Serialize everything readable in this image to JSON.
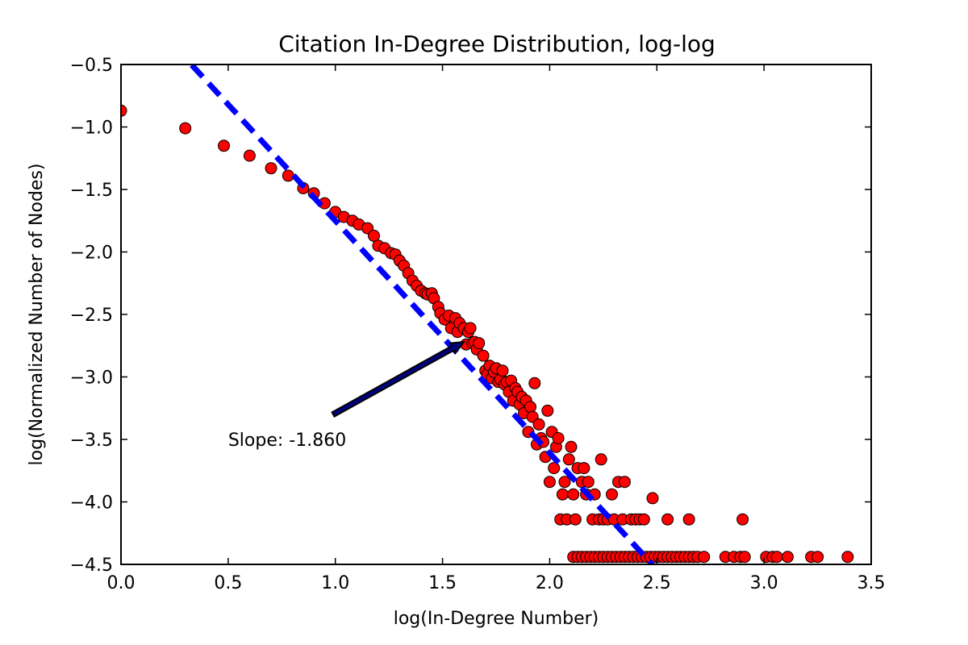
{
  "chart_data": {
    "type": "scatter",
    "title": "Citation In-Degree Distribution, log-log",
    "xlabel": "log(In-Degree Number)",
    "ylabel": "log(Normalized Number of Nodes)",
    "xlim": [
      0.0,
      3.5
    ],
    "ylim": [
      -4.5,
      -0.5
    ],
    "xticks": [
      "0.0",
      "0.5",
      "1.0",
      "1.5",
      "2.0",
      "2.5",
      "3.0",
      "3.5"
    ],
    "yticks": [
      "−0.5",
      "−1.0",
      "−1.5",
      "−2.0",
      "−2.5",
      "−3.0",
      "−3.5",
      "−4.0",
      "−4.5"
    ],
    "grid": false,
    "legend": "none",
    "marker_color": "#ff0000",
    "marker_edge_color": "#000000",
    "fit_line_color": "#0000ff",
    "fit_line": {
      "slope": -1.86,
      "intercept": 0.11,
      "x_range": [
        0.33,
        2.48
      ]
    },
    "annotation": {
      "text": "Slope: -1.860",
      "text_at": [
        0.5,
        -3.5
      ],
      "arrow_from": [
        0.99,
        -3.3
      ],
      "arrow_to": [
        1.6,
        -2.72
      ]
    },
    "series": [
      {
        "points": [
          [
            0.0,
            -0.87
          ],
          [
            0.3,
            -1.01
          ],
          [
            0.48,
            -1.15
          ],
          [
            0.6,
            -1.23
          ],
          [
            0.7,
            -1.33
          ],
          [
            0.78,
            -1.39
          ],
          [
            0.85,
            -1.49
          ],
          [
            0.9,
            -1.53
          ],
          [
            0.95,
            -1.61
          ],
          [
            1.0,
            -1.68
          ],
          [
            1.04,
            -1.72
          ],
          [
            1.08,
            -1.75
          ],
          [
            1.11,
            -1.78
          ],
          [
            1.15,
            -1.81
          ],
          [
            1.18,
            -1.87
          ],
          [
            1.2,
            -1.95
          ],
          [
            1.23,
            -1.97
          ],
          [
            1.26,
            -2.01
          ],
          [
            1.28,
            -2.02
          ],
          [
            1.3,
            -2.07
          ],
          [
            1.32,
            -2.11
          ],
          [
            1.34,
            -2.17
          ],
          [
            1.36,
            -2.23
          ],
          [
            1.38,
            -2.27
          ],
          [
            1.4,
            -2.31
          ],
          [
            1.42,
            -2.33
          ],
          [
            1.43,
            -2.34
          ],
          [
            1.45,
            -2.33
          ],
          [
            1.46,
            -2.37
          ],
          [
            1.48,
            -2.44
          ],
          [
            1.49,
            -2.49
          ],
          [
            1.51,
            -2.54
          ],
          [
            1.53,
            -2.51
          ],
          [
            1.54,
            -2.61
          ],
          [
            1.56,
            -2.53
          ],
          [
            1.57,
            -2.64
          ],
          [
            1.58,
            -2.57
          ],
          [
            1.6,
            -2.61
          ],
          [
            1.61,
            -2.74
          ],
          [
            1.62,
            -2.64
          ],
          [
            1.63,
            -2.61
          ],
          [
            1.64,
            -2.73
          ],
          [
            1.65,
            -2.72
          ],
          [
            1.66,
            -2.78
          ],
          [
            1.67,
            -2.73
          ],
          [
            1.69,
            -2.83
          ],
          [
            1.7,
            -2.95
          ],
          [
            1.71,
            -2.98
          ],
          [
            1.72,
            -2.91
          ],
          [
            1.73,
            -3.01
          ],
          [
            1.74,
            -2.96
          ],
          [
            1.75,
            -2.93
          ],
          [
            1.76,
            -3.04
          ],
          [
            1.77,
            -3.02
          ],
          [
            1.78,
            -2.95
          ],
          [
            1.79,
            -3.06
          ],
          [
            1.8,
            -3.04
          ],
          [
            1.81,
            -3.12
          ],
          [
            1.82,
            -3.03
          ],
          [
            1.83,
            -3.19
          ],
          [
            1.84,
            -3.09
          ],
          [
            1.85,
            -3.12
          ],
          [
            1.86,
            -3.22
          ],
          [
            1.87,
            -3.16
          ],
          [
            1.88,
            -3.29
          ],
          [
            1.89,
            -3.19
          ],
          [
            1.9,
            -3.44
          ],
          [
            1.91,
            -3.24
          ],
          [
            1.92,
            -3.32
          ],
          [
            1.93,
            -3.05
          ],
          [
            1.94,
            -3.54
          ],
          [
            1.95,
            -3.38
          ],
          [
            1.96,
            -3.49
          ],
          [
            1.97,
            -3.52
          ],
          [
            1.98,
            -3.64
          ],
          [
            1.99,
            -3.27
          ],
          [
            2.0,
            -3.84
          ],
          [
            2.01,
            -3.44
          ],
          [
            2.02,
            -3.73
          ],
          [
            2.03,
            -3.56
          ],
          [
            2.04,
            -3.49
          ],
          [
            2.05,
            -4.14
          ],
          [
            2.06,
            -3.94
          ],
          [
            2.07,
            -3.84
          ],
          [
            2.08,
            -4.14
          ],
          [
            2.09,
            -3.66
          ],
          [
            2.1,
            -3.56
          ],
          [
            2.11,
            -3.94
          ],
          [
            2.12,
            -4.14
          ],
          [
            2.13,
            -3.73
          ],
          [
            2.15,
            -3.84
          ],
          [
            2.16,
            -3.73
          ],
          [
            2.17,
            -3.94
          ],
          [
            2.18,
            -3.84
          ],
          [
            2.2,
            -4.14
          ],
          [
            2.21,
            -3.94
          ],
          [
            2.23,
            -4.14
          ],
          [
            2.24,
            -3.66
          ],
          [
            2.25,
            -4.14
          ],
          [
            2.27,
            -4.14
          ],
          [
            2.29,
            -3.94
          ],
          [
            2.3,
            -4.14
          ],
          [
            2.32,
            -3.84
          ],
          [
            2.34,
            -4.14
          ],
          [
            2.35,
            -3.84
          ],
          [
            2.38,
            -4.14
          ],
          [
            2.4,
            -4.14
          ],
          [
            2.42,
            -4.14
          ],
          [
            2.44,
            -4.14
          ],
          [
            2.48,
            -3.97
          ],
          [
            2.55,
            -4.14
          ],
          [
            2.65,
            -4.14
          ],
          [
            2.9,
            -4.14
          ],
          [
            2.11,
            -4.44
          ],
          [
            2.13,
            -4.44
          ],
          [
            2.15,
            -4.44
          ],
          [
            2.17,
            -4.44
          ],
          [
            2.19,
            -4.44
          ],
          [
            2.21,
            -4.44
          ],
          [
            2.23,
            -4.44
          ],
          [
            2.25,
            -4.44
          ],
          [
            2.27,
            -4.44
          ],
          [
            2.29,
            -4.44
          ],
          [
            2.31,
            -4.44
          ],
          [
            2.33,
            -4.44
          ],
          [
            2.35,
            -4.44
          ],
          [
            2.37,
            -4.44
          ],
          [
            2.39,
            -4.44
          ],
          [
            2.41,
            -4.44
          ],
          [
            2.43,
            -4.44
          ],
          [
            2.45,
            -4.44
          ],
          [
            2.47,
            -4.44
          ],
          [
            2.49,
            -4.44
          ],
          [
            2.51,
            -4.44
          ],
          [
            2.53,
            -4.44
          ],
          [
            2.55,
            -4.44
          ],
          [
            2.57,
            -4.44
          ],
          [
            2.59,
            -4.44
          ],
          [
            2.61,
            -4.44
          ],
          [
            2.63,
            -4.44
          ],
          [
            2.65,
            -4.44
          ],
          [
            2.67,
            -4.44
          ],
          [
            2.69,
            -4.44
          ],
          [
            2.72,
            -4.44
          ],
          [
            2.82,
            -4.44
          ],
          [
            2.86,
            -4.44
          ],
          [
            2.89,
            -4.44
          ],
          [
            2.91,
            -4.44
          ],
          [
            3.01,
            -4.44
          ],
          [
            3.04,
            -4.44
          ],
          [
            3.06,
            -4.44
          ],
          [
            3.11,
            -4.44
          ],
          [
            3.22,
            -4.44
          ],
          [
            3.25,
            -4.44
          ],
          [
            3.39,
            -4.44
          ]
        ]
      }
    ]
  }
}
